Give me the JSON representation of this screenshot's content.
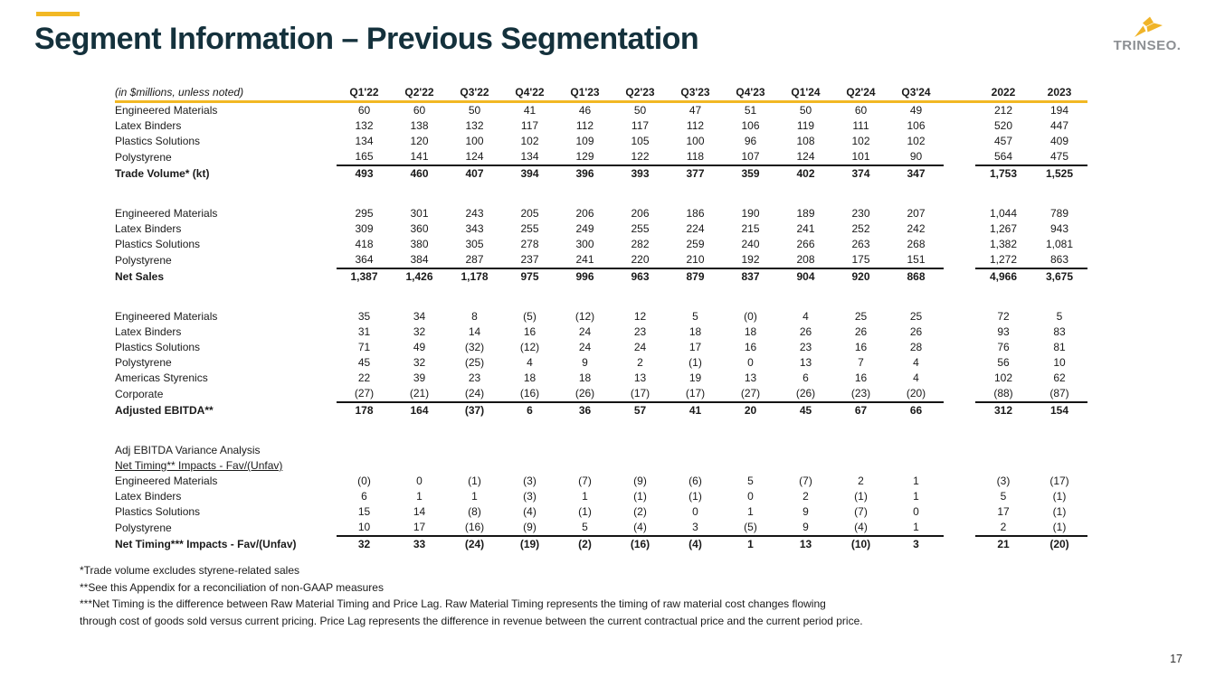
{
  "header": {
    "title": "Segment Information – Previous Segmentation",
    "logo_text": "TRINSEO.",
    "accent_color": "#F2B824",
    "title_color": "#14313C"
  },
  "table": {
    "unit_label": "(in $millions, unless noted)",
    "quarter_columns": [
      "Q1'22",
      "Q2'22",
      "Q3'22",
      "Q4'22",
      "Q1'23",
      "Q2'23",
      "Q3'23",
      "Q4'23",
      "Q1'24",
      "Q2'24",
      "Q3'24"
    ],
    "annual_columns": [
      "2022",
      "2023"
    ],
    "blocks": [
      {
        "rows": [
          {
            "label": "Engineered Materials",
            "values": [
              "60",
              "60",
              "50",
              "41",
              "46",
              "50",
              "47",
              "51",
              "50",
              "60",
              "49"
            ],
            "annual": [
              "212",
              "194"
            ]
          },
          {
            "label": "Latex Binders",
            "values": [
              "132",
              "138",
              "132",
              "117",
              "112",
              "117",
              "112",
              "106",
              "119",
              "111",
              "106"
            ],
            "annual": [
              "520",
              "447"
            ]
          },
          {
            "label": "Plastics Solutions",
            "values": [
              "134",
              "120",
              "100",
              "102",
              "109",
              "105",
              "100",
              "96",
              "108",
              "102",
              "102"
            ],
            "annual": [
              "457",
              "409"
            ]
          },
          {
            "label": "Polystyrene",
            "values": [
              "165",
              "141",
              "124",
              "134",
              "129",
              "122",
              "118",
              "107",
              "124",
              "101",
              "90"
            ],
            "annual": [
              "564",
              "475"
            ]
          }
        ],
        "total": {
          "label": "Trade Volume* (kt)",
          "values": [
            "493",
            "460",
            "407",
            "394",
            "396",
            "393",
            "377",
            "359",
            "402",
            "374",
            "347"
          ],
          "annual": [
            "1,753",
            "1,525"
          ]
        }
      },
      {
        "rows": [
          {
            "label": "Engineered Materials",
            "values": [
              "295",
              "301",
              "243",
              "205",
              "206",
              "206",
              "186",
              "190",
              "189",
              "230",
              "207"
            ],
            "annual": [
              "1,044",
              "789"
            ]
          },
          {
            "label": "Latex Binders",
            "values": [
              "309",
              "360",
              "343",
              "255",
              "249",
              "255",
              "224",
              "215",
              "241",
              "252",
              "242"
            ],
            "annual": [
              "1,267",
              "943"
            ]
          },
          {
            "label": "Plastics Solutions",
            "values": [
              "418",
              "380",
              "305",
              "278",
              "300",
              "282",
              "259",
              "240",
              "266",
              "263",
              "268"
            ],
            "annual": [
              "1,382",
              "1,081"
            ]
          },
          {
            "label": "Polystyrene",
            "values": [
              "364",
              "384",
              "287",
              "237",
              "241",
              "220",
              "210",
              "192",
              "208",
              "175",
              "151"
            ],
            "annual": [
              "1,272",
              "863"
            ]
          }
        ],
        "total": {
          "label": "Net Sales",
          "values": [
            "1,387",
            "1,426",
            "1,178",
            "975",
            "996",
            "963",
            "879",
            "837",
            "904",
            "920",
            "868"
          ],
          "annual": [
            "4,966",
            "3,675"
          ]
        }
      },
      {
        "rows": [
          {
            "label": "Engineered Materials",
            "values": [
              "35",
              "34",
              "8",
              "(5)",
              "(12)",
              "12",
              "5",
              "(0)",
              "4",
              "25",
              "25"
            ],
            "annual": [
              "72",
              "5"
            ]
          },
          {
            "label": "Latex Binders",
            "values": [
              "31",
              "32",
              "14",
              "16",
              "24",
              "23",
              "18",
              "18",
              "26",
              "26",
              "26"
            ],
            "annual": [
              "93",
              "83"
            ]
          },
          {
            "label": "Plastics Solutions",
            "values": [
              "71",
              "49",
              "(32)",
              "(12)",
              "24",
              "24",
              "17",
              "16",
              "23",
              "16",
              "28"
            ],
            "annual": [
              "76",
              "81"
            ]
          },
          {
            "label": "Polystyrene",
            "values": [
              "45",
              "32",
              "(25)",
              "4",
              "9",
              "2",
              "(1)",
              "0",
              "13",
              "7",
              "4"
            ],
            "annual": [
              "56",
              "10"
            ]
          },
          {
            "label": "Americas Styrenics",
            "values": [
              "22",
              "39",
              "23",
              "18",
              "18",
              "13",
              "19",
              "13",
              "6",
              "16",
              "4"
            ],
            "annual": [
              "102",
              "62"
            ]
          },
          {
            "label": "Corporate",
            "values": [
              "(27)",
              "(21)",
              "(24)",
              "(16)",
              "(26)",
              "(17)",
              "(17)",
              "(27)",
              "(26)",
              "(23)",
              "(20)"
            ],
            "annual": [
              "(88)",
              "(87)"
            ]
          }
        ],
        "total": {
          "label": "Adjusted EBITDA**",
          "values": [
            "178",
            "164",
            "(37)",
            "6",
            "36",
            "57",
            "41",
            "20",
            "45",
            "67",
            "66"
          ],
          "annual": [
            "312",
            "154"
          ]
        }
      },
      {
        "headers": [
          {
            "label": "Adj EBITDA Variance Analysis",
            "underline": false
          },
          {
            "label": "Net Timing** Impacts - Fav/(Unfav)",
            "underline": true
          }
        ],
        "rows": [
          {
            "label": "Engineered Materials",
            "values": [
              "(0)",
              "0",
              "(1)",
              "(3)",
              "(7)",
              "(9)",
              "(6)",
              "5",
              "(7)",
              "2",
              "1"
            ],
            "annual": [
              "(3)",
              "(17)"
            ]
          },
          {
            "label": "Latex Binders",
            "values": [
              "6",
              "1",
              "1",
              "(3)",
              "1",
              "(1)",
              "(1)",
              "0",
              "2",
              "(1)",
              "1"
            ],
            "annual": [
              "5",
              "(1)"
            ]
          },
          {
            "label": "Plastics Solutions",
            "values": [
              "15",
              "14",
              "(8)",
              "(4)",
              "(1)",
              "(2)",
              "0",
              "1",
              "9",
              "(7)",
              "0"
            ],
            "annual": [
              "17",
              "(1)"
            ]
          },
          {
            "label": "Polystyrene",
            "values": [
              "10",
              "17",
              "(16)",
              "(9)",
              "5",
              "(4)",
              "3",
              "(5)",
              "9",
              "(4)",
              "1"
            ],
            "annual": [
              "2",
              "(1)"
            ]
          }
        ],
        "total": {
          "label": "Net Timing*** Impacts - Fav/(Unfav)",
          "values": [
            "32",
            "33",
            "(24)",
            "(19)",
            "(2)",
            "(16)",
            "(4)",
            "1",
            "13",
            "(10)",
            "3"
          ],
          "annual": [
            "21",
            "(20)"
          ]
        }
      }
    ],
    "layout": {
      "label_col_width": 245,
      "quarter_col_width": 61,
      "spacer_col_width": 35,
      "annual_col_width": 62
    }
  },
  "footnotes": {
    "lines": [
      "*Trade volume excludes styrene-related sales",
      "**See this Appendix for a reconciliation of non-GAAP measures",
      "***Net Timing is the difference between Raw Material Timing and Price Lag. Raw Material Timing represents the timing of raw material cost changes flowing",
      "through cost of goods sold versus current pricing.  Price Lag represents the difference in revenue between the current contractual price and the current period price."
    ]
  },
  "footer": {
    "page_number": "17"
  }
}
